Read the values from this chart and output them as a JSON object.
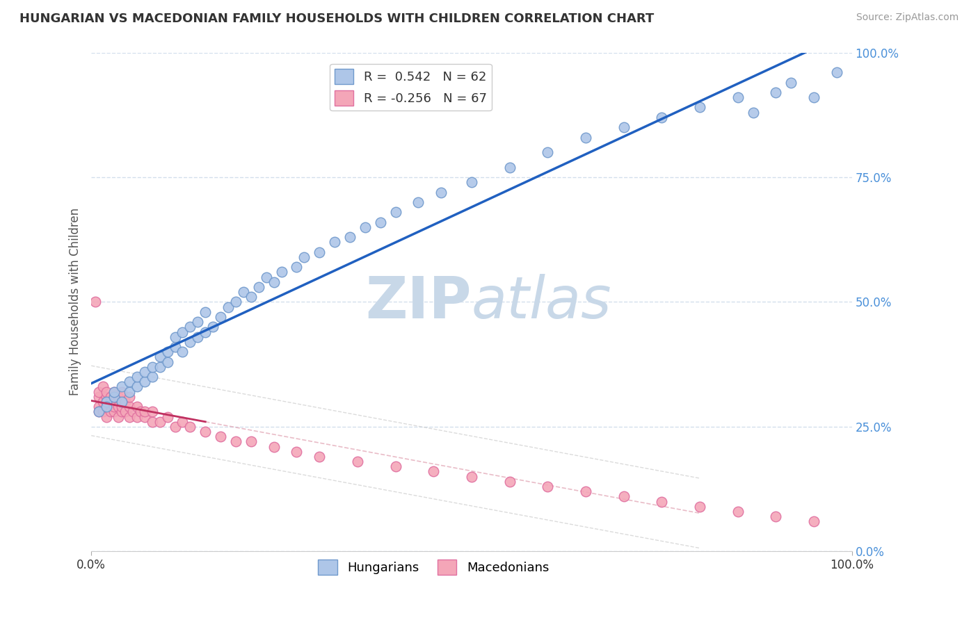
{
  "title": "HUNGARIAN VS MACEDONIAN FAMILY HOUSEHOLDS WITH CHILDREN CORRELATION CHART",
  "source": "Source: ZipAtlas.com",
  "ylabel": "Family Households with Children",
  "xlim": [
    0.0,
    1.0
  ],
  "ylim": [
    0.0,
    1.0
  ],
  "ytick_labels": [
    "0.0%",
    "25.0%",
    "50.0%",
    "75.0%",
    "100.0%"
  ],
  "ytick_positions": [
    0.0,
    0.25,
    0.5,
    0.75,
    1.0
  ],
  "hungarian_color": "#aec6e8",
  "macedonian_color": "#f4a6b8",
  "hungarian_line_color": "#2060c0",
  "macedonian_line_color": "#c03060",
  "background_color": "#ffffff",
  "grid_color": "#c8d8e8",
  "watermark_color": "#c8d8e8",
  "hungarian_x": [
    0.01,
    0.02,
    0.02,
    0.03,
    0.03,
    0.04,
    0.04,
    0.05,
    0.05,
    0.06,
    0.06,
    0.07,
    0.07,
    0.08,
    0.08,
    0.09,
    0.09,
    0.1,
    0.1,
    0.11,
    0.11,
    0.12,
    0.12,
    0.13,
    0.13,
    0.14,
    0.14,
    0.15,
    0.15,
    0.16,
    0.17,
    0.18,
    0.19,
    0.2,
    0.21,
    0.22,
    0.23,
    0.24,
    0.25,
    0.27,
    0.28,
    0.3,
    0.32,
    0.34,
    0.36,
    0.38,
    0.4,
    0.43,
    0.46,
    0.5,
    0.55,
    0.6,
    0.65,
    0.7,
    0.75,
    0.8,
    0.85,
    0.87,
    0.9,
    0.92,
    0.95,
    0.98
  ],
  "hungarian_y": [
    0.28,
    0.3,
    0.29,
    0.31,
    0.32,
    0.3,
    0.33,
    0.32,
    0.34,
    0.33,
    0.35,
    0.34,
    0.36,
    0.35,
    0.37,
    0.37,
    0.39,
    0.38,
    0.4,
    0.41,
    0.43,
    0.4,
    0.44,
    0.42,
    0.45,
    0.43,
    0.46,
    0.44,
    0.48,
    0.45,
    0.47,
    0.49,
    0.5,
    0.52,
    0.51,
    0.53,
    0.55,
    0.54,
    0.56,
    0.57,
    0.59,
    0.6,
    0.62,
    0.63,
    0.65,
    0.66,
    0.68,
    0.7,
    0.72,
    0.74,
    0.77,
    0.8,
    0.83,
    0.85,
    0.87,
    0.89,
    0.91,
    0.88,
    0.92,
    0.94,
    0.91,
    0.96
  ],
  "macedonian_x": [
    0.005,
    0.01,
    0.01,
    0.01,
    0.01,
    0.015,
    0.015,
    0.015,
    0.02,
    0.02,
    0.02,
    0.02,
    0.02,
    0.025,
    0.025,
    0.025,
    0.025,
    0.03,
    0.03,
    0.03,
    0.03,
    0.03,
    0.035,
    0.035,
    0.035,
    0.04,
    0.04,
    0.04,
    0.04,
    0.045,
    0.045,
    0.05,
    0.05,
    0.05,
    0.055,
    0.06,
    0.06,
    0.065,
    0.07,
    0.07,
    0.08,
    0.08,
    0.09,
    0.1,
    0.11,
    0.12,
    0.13,
    0.15,
    0.17,
    0.19,
    0.21,
    0.24,
    0.27,
    0.3,
    0.35,
    0.4,
    0.45,
    0.5,
    0.55,
    0.6,
    0.65,
    0.7,
    0.75,
    0.8,
    0.85,
    0.9,
    0.95
  ],
  "macedonian_y": [
    0.5,
    0.29,
    0.31,
    0.28,
    0.32,
    0.3,
    0.28,
    0.33,
    0.29,
    0.31,
    0.27,
    0.3,
    0.32,
    0.29,
    0.31,
    0.28,
    0.3,
    0.28,
    0.3,
    0.32,
    0.29,
    0.31,
    0.29,
    0.27,
    0.31,
    0.28,
    0.3,
    0.32,
    0.29,
    0.28,
    0.3,
    0.27,
    0.29,
    0.31,
    0.28,
    0.27,
    0.29,
    0.28,
    0.27,
    0.28,
    0.26,
    0.28,
    0.26,
    0.27,
    0.25,
    0.26,
    0.25,
    0.24,
    0.23,
    0.22,
    0.22,
    0.21,
    0.2,
    0.19,
    0.18,
    0.17,
    0.16,
    0.15,
    0.14,
    0.13,
    0.12,
    0.11,
    0.1,
    0.09,
    0.08,
    0.07,
    0.06
  ]
}
